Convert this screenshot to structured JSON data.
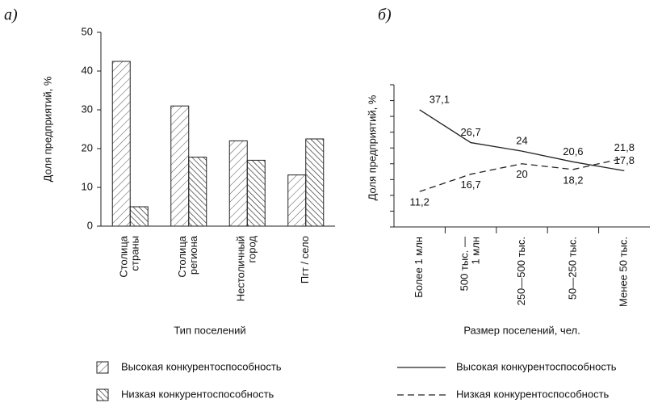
{
  "chart_data": [
    {
      "type": "bar",
      "panel_label": "а)",
      "y_label": "Доля предприятий, %",
      "x_label": "Тип поселений",
      "categories": [
        [
          "Столица",
          "страны"
        ],
        [
          "Столица",
          "региона"
        ],
        [
          "Нестоличный",
          "город"
        ],
        [
          "Пгт / село"
        ]
      ],
      "series": [
        {
          "name": "Высокая конкурентоспособность",
          "color": "#222",
          "hatch": "/",
          "values": [
            42.5,
            31,
            22,
            13.2
          ]
        },
        {
          "name": "Низкая конкурентоспособность",
          "color": "#222",
          "hatch": "\\",
          "values": [
            5,
            17.8,
            17,
            22.5
          ]
        }
      ],
      "ylim": [
        0,
        50
      ],
      "yticks": [
        0,
        10,
        20,
        30,
        40,
        50
      ]
    },
    {
      "type": "line",
      "panel_label": "б)",
      "y_label": "Доля предприятий, %",
      "x_label": "Размер поселений, чел.",
      "categories": [
        [
          "Более 1 млн"
        ],
        [
          "500 тыс. —",
          "1 млн"
        ],
        [
          "250—500 тыс."
        ],
        [
          "50—250 тыс."
        ],
        [
          "Менее 50 тыс."
        ]
      ],
      "series": [
        {
          "name": "Высокая конкурентоспособность",
          "color": "#222",
          "dash": "none",
          "values": [
            37.1,
            26.7,
            24,
            20.6,
            17.8
          ],
          "value_labels": [
            "37,1",
            "26,7",
            "24",
            "20,6",
            "17,8"
          ]
        },
        {
          "name": "Низкая конкурентоспособность",
          "color": "#222",
          "dash": "8,5",
          "values": [
            11.2,
            16.7,
            20,
            18.2,
            21.8
          ],
          "value_labels": [
            "11,2",
            "16,7",
            "20",
            "18,2",
            "21,8"
          ]
        }
      ],
      "ylim": [
        0,
        45
      ],
      "yticks": [
        0,
        5,
        10,
        15,
        20,
        25,
        30,
        35,
        40,
        45
      ],
      "ytick_labels": false
    }
  ]
}
